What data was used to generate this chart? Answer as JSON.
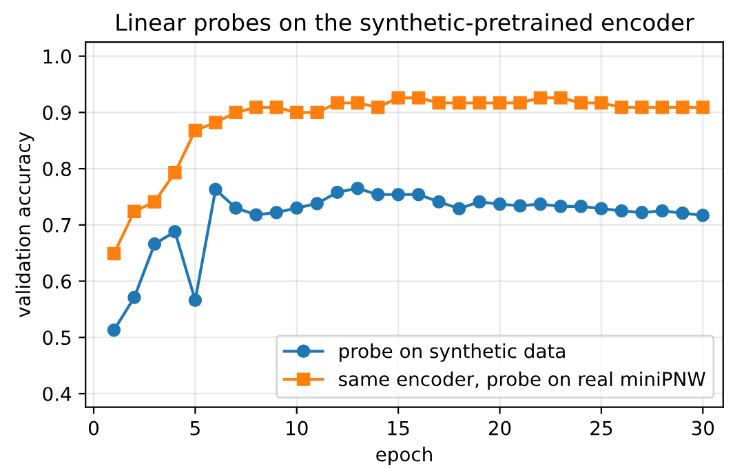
{
  "chart_data": {
    "type": "line",
    "title": "Linear probes on the synthetic-pretrained encoder",
    "xlabel": "epoch",
    "ylabel": "validation accuracy",
    "x": [
      1,
      2,
      3,
      4,
      5,
      6,
      7,
      8,
      9,
      10,
      11,
      12,
      13,
      14,
      15,
      16,
      17,
      18,
      19,
      20,
      21,
      22,
      23,
      24,
      25,
      26,
      27,
      28,
      29,
      30
    ],
    "series": [
      {
        "name": "probe on synthetic data",
        "color": "#1f77b4",
        "marker": "circle",
        "values": [
          0.513,
          0.571,
          0.666,
          0.688,
          0.566,
          0.763,
          0.73,
          0.718,
          0.722,
          0.73,
          0.738,
          0.758,
          0.765,
          0.754,
          0.754,
          0.754,
          0.741,
          0.729,
          0.741,
          0.737,
          0.734,
          0.737,
          0.733,
          0.733,
          0.729,
          0.725,
          0.722,
          0.725,
          0.721,
          0.717
        ]
      },
      {
        "name": "same encoder, probe on real miniPNW",
        "color": "#ff7f0e",
        "marker": "square",
        "values": [
          0.649,
          0.724,
          0.741,
          0.793,
          0.868,
          0.882,
          0.9,
          0.909,
          0.909,
          0.9,
          0.9,
          0.917,
          0.917,
          0.909,
          0.926,
          0.926,
          0.917,
          0.917,
          0.917,
          0.917,
          0.917,
          0.926,
          0.926,
          0.917,
          0.917,
          0.909,
          0.909,
          0.909,
          0.909,
          0.909
        ]
      }
    ],
    "xlim": [
      -0.4,
      31.0
    ],
    "xticks": [
      0,
      5,
      10,
      15,
      20,
      25,
      30
    ],
    "ylim": [
      0.376,
      1.025
    ],
    "yticks": [
      0.4,
      0.5,
      0.6,
      0.7,
      0.8,
      0.9,
      {
        "value": 1.0,
        "label": "1.0"
      }
    ],
    "grid": true,
    "legend": "bottom right",
    "line_style": "solid"
  }
}
